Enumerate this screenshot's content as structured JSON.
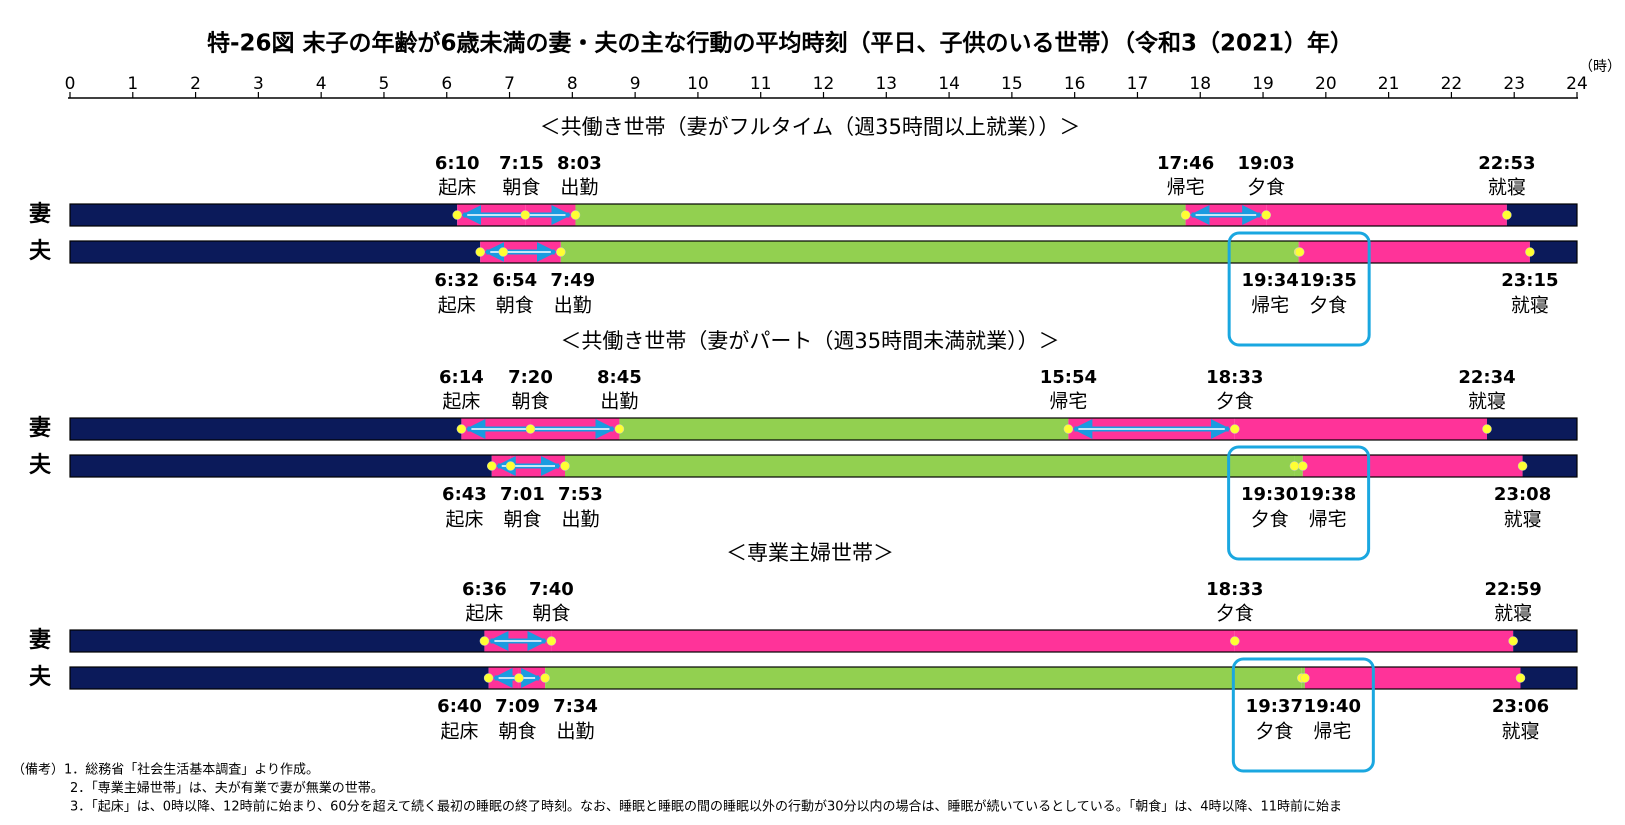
{
  "chart_data": {
    "type": "timeline",
    "title": "特-26図 末子の年齢が6歳未満の妻・夫の主な行動の平均時刻（平日、子供のいる世帯）（令和3（2021）年）",
    "x_unit": "（時）",
    "xlim": [
      0,
      24
    ],
    "xticks": [
      0,
      1,
      2,
      3,
      4,
      5,
      6,
      7,
      8,
      9,
      10,
      11,
      12,
      13,
      14,
      15,
      16,
      17,
      18,
      19,
      20,
      21,
      22,
      23,
      24
    ],
    "panels": [
      {
        "title": "＜共働き世帯（妻がフルタイム（週35時間以上就業））＞",
        "rows": [
          {
            "name": "妻",
            "events": [
              {
                "value": 6.1667,
                "label": "6:10",
                "name": "起床"
              },
              {
                "value": 7.25,
                "label": "7:15",
                "name": "朝食"
              },
              {
                "value": 8.05,
                "label": "8:03",
                "name": "出勤"
              },
              {
                "value": 17.7667,
                "label": "17:46",
                "name": "帰宅"
              },
              {
                "value": 19.05,
                "label": "19:03",
                "name": "夕食"
              },
              {
                "value": 22.8833,
                "label": "22:53",
                "name": "就寝"
              }
            ],
            "colors": [
              "#0b1a5a",
              "#ff3399",
              "#ff3399",
              "#92d050",
              "#ff3399",
              "#ff3399",
              "#0b1a5a"
            ]
          },
          {
            "name": "夫",
            "events": [
              {
                "value": 6.5333,
                "label": "6:32",
                "name": "起床"
              },
              {
                "value": 6.9,
                "label": "6:54",
                "name": "朝食"
              },
              {
                "value": 7.8167,
                "label": "7:49",
                "name": "出勤"
              },
              {
                "value": 19.5667,
                "label": "19:34",
                "name": "帰宅"
              },
              {
                "value": 19.5833,
                "label": "19:35",
                "name": "夕食"
              },
              {
                "value": 23.25,
                "label": "23:15",
                "name": "就寝"
              }
            ],
            "colors": [
              "#0b1a5a",
              "#ff3399",
              "#ff3399",
              "#92d050",
              "#ff3399",
              "#ff3399",
              "#0b1a5a"
            ]
          }
        ]
      },
      {
        "title": "＜共働き世帯（妻がパート（週35時間未満就業））＞",
        "rows": [
          {
            "name": "妻",
            "events": [
              {
                "value": 6.2333,
                "label": "6:14",
                "name": "起床"
              },
              {
                "value": 7.3333,
                "label": "7:20",
                "name": "朝食"
              },
              {
                "value": 8.75,
                "label": "8:45",
                "name": "出勤"
              },
              {
                "value": 15.9,
                "label": "15:54",
                "name": "帰宅"
              },
              {
                "value": 18.55,
                "label": "18:33",
                "name": "夕食"
              },
              {
                "value": 22.5667,
                "label": "22:34",
                "name": "就寝"
              }
            ],
            "colors": [
              "#0b1a5a",
              "#ff3399",
              "#ff3399",
              "#92d050",
              "#ff3399",
              "#ff3399",
              "#0b1a5a"
            ]
          },
          {
            "name": "夫",
            "events": [
              {
                "value": 6.7167,
                "label": "6:43",
                "name": "起床"
              },
              {
                "value": 7.0167,
                "label": "7:01",
                "name": "朝食"
              },
              {
                "value": 7.8833,
                "label": "7:53",
                "name": "出勤"
              },
              {
                "value": 19.5,
                "label": "19:30",
                "name": "夕食"
              },
              {
                "value": 19.6333,
                "label": "19:38",
                "name": "帰宅"
              },
              {
                "value": 23.1333,
                "label": "23:08",
                "name": "就寝"
              }
            ],
            "colors": [
              "#0b1a5a",
              "#ff3399",
              "#ff3399",
              "#92d050",
              "#92d050",
              "#ff3399",
              "#0b1a5a"
            ]
          }
        ]
      },
      {
        "title": "＜専業主婦世帯＞",
        "rows": [
          {
            "name": "妻",
            "events": [
              {
                "value": 6.6,
                "label": "6:36",
                "name": "起床"
              },
              {
                "value": 7.6667,
                "label": "7:40",
                "name": "朝食"
              },
              {
                "value": 18.55,
                "label": "18:33",
                "name": "夕食"
              },
              {
                "value": 22.9833,
                "label": "22:59",
                "name": "就寝"
              }
            ],
            "colors": [
              "#0b1a5a",
              "#ff3399",
              "#ff3399",
              "#ff3399",
              "#0b1a5a"
            ]
          },
          {
            "name": "夫",
            "events": [
              {
                "value": 6.6667,
                "label": "6:40",
                "name": "起床"
              },
              {
                "value": 7.15,
                "label": "7:09",
                "name": "朝食"
              },
              {
                "value": 7.5667,
                "label": "7:34",
                "name": "出勤"
              },
              {
                "value": 19.6167,
                "label": "19:37",
                "name": "夕食"
              },
              {
                "value": 19.6667,
                "label": "19:40",
                "name": "帰宅"
              },
              {
                "value": 23.1,
                "label": "23:06",
                "name": "就寝"
              }
            ],
            "colors": [
              "#0b1a5a",
              "#ff3399",
              "#ff3399",
              "#92d050",
              "#92d050",
              "#ff3399",
              "#0b1a5a"
            ]
          }
        ]
      }
    ],
    "notes": [
      "（備考）1．総務省「社会生活基本調査」より作成。",
      "2．「専業主婦世帯」は、夫が有業で妻が無業の世帯。",
      "3．「起床」は、0時以降、12時前に始まり、60分を超えて続く最初の睡眠の終了時刻。なお、睡眠と睡眠の間の睡眠以外の行動が30分以内の場合は、睡眠が続いているとしている。「朝食」は、4時以降、11時前に始ま"
    ]
  }
}
